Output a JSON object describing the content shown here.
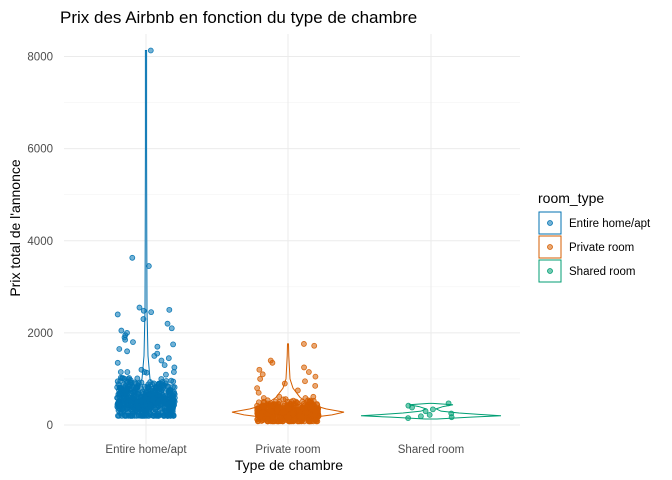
{
  "chart_data": {
    "type": "scatter",
    "subtype": "jitter-with-violin",
    "title": "Prix des Airbnb en fonction du type de chambre",
    "xlabel": "Type de chambre",
    "ylabel": "Prix total de l'annonce",
    "categories": [
      "Entire home/apt",
      "Private room",
      "Shared room"
    ],
    "ylim": [
      -200,
      8350
    ],
    "yticks": [
      0,
      2000,
      4000,
      6000,
      8000
    ],
    "grid": true,
    "legend": {
      "title": "room_type",
      "placement": "right",
      "entries": [
        "Entire home/apt",
        "Private room",
        "Shared room"
      ]
    },
    "colors": {
      "Entire home/apt": "#0072B2",
      "Private room": "#D55E00",
      "Shared room": "#009E73"
    },
    "series": [
      {
        "name": "Entire home/apt",
        "range": [
          150,
          8130
        ],
        "bulk": [
          200,
          1150
        ],
        "outliers": [
          8130,
          3630,
          3450,
          2550,
          2500,
          2480,
          2450,
          2400,
          2300,
          2200,
          2100,
          2050,
          2000,
          1950,
          1900,
          1850,
          1800,
          1750,
          1700,
          1650,
          1600,
          1550,
          1500,
          1450,
          1400,
          1350,
          1300,
          1250,
          1200
        ]
      },
      {
        "name": "Private room",
        "range": [
          60,
          1760
        ],
        "bulk": [
          80,
          650
        ],
        "outliers": [
          1760,
          1720,
          1400,
          1350,
          1250,
          1200,
          1150,
          1100,
          1050,
          1000,
          950,
          900,
          850,
          800,
          750,
          700
        ]
      },
      {
        "name": "Shared room",
        "range": [
          130,
          470
        ],
        "points": [
          470,
          420,
          380,
          340,
          300,
          250,
          220,
          190,
          170,
          150
        ]
      }
    ]
  }
}
